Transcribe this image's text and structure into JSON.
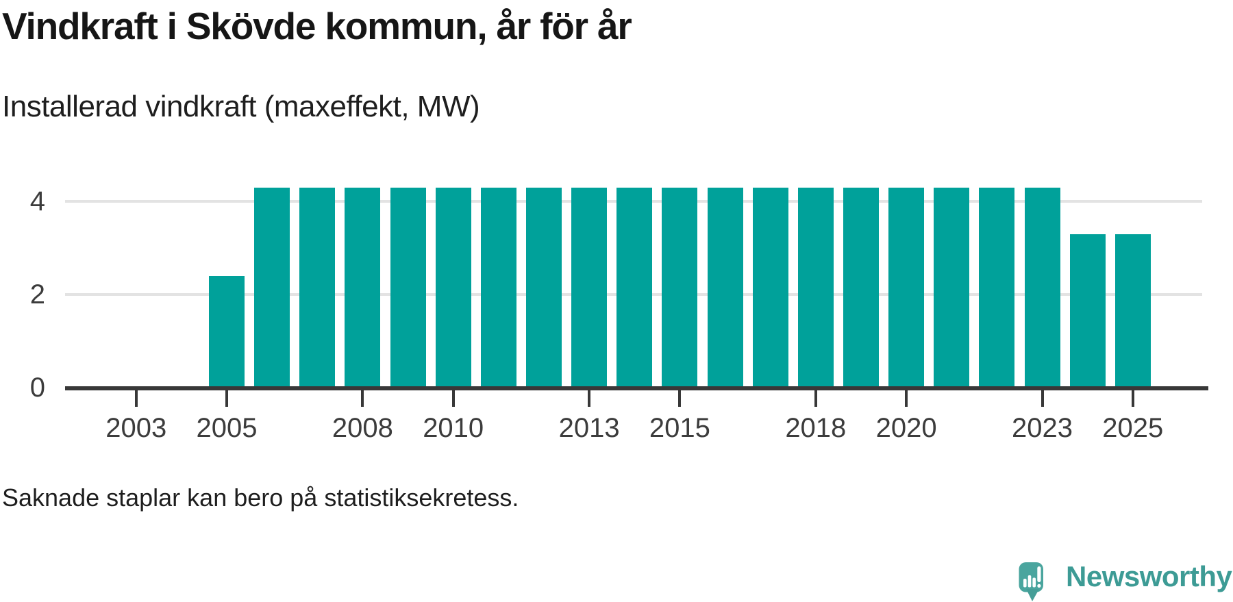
{
  "chart_data": {
    "type": "bar",
    "title": "Vindkraft i Skövde kommun, år för år",
    "subtitle": "Installerad vindkraft (maxeffekt, MW)",
    "ylabel": "Installerad vindkraft (maxeffekt, MW)",
    "unit": "MW",
    "x": [
      2002,
      2003,
      2004,
      2005,
      2006,
      2007,
      2008,
      2009,
      2010,
      2011,
      2012,
      2013,
      2014,
      2015,
      2016,
      2017,
      2018,
      2019,
      2020,
      2021,
      2022,
      2023,
      2024,
      2025
    ],
    "values": [
      null,
      null,
      null,
      2.4,
      4.3,
      4.3,
      4.3,
      4.3,
      4.3,
      4.3,
      4.3,
      4.3,
      4.3,
      4.3,
      4.3,
      4.3,
      4.3,
      4.3,
      4.3,
      4.3,
      4.3,
      4.3,
      3.3,
      3.3
    ],
    "missing_years": [
      2002,
      2003,
      2004
    ],
    "ylim": [
      0,
      5
    ],
    "yticks": [
      0,
      2,
      4
    ],
    "gridline_values": [
      2,
      4
    ],
    "xtick_years": [
      2003,
      2005,
      2008,
      2010,
      2013,
      2015,
      2018,
      2020,
      2023,
      2025
    ],
    "grid": "horizontal",
    "legend": "none",
    "note": "Saknade staplar kan bero på statistiksekretess."
  },
  "branding": {
    "name": "Newsworthy",
    "icon": "newsworthy-speech-bubble-chart-icon"
  },
  "colors": {
    "bar": "#00a19a",
    "axis": "#383838",
    "grid": "#e3e3e3",
    "tick": "#383838",
    "title_text": "#161616",
    "tick_text": "#3c3c3c",
    "brand_text": "#3d9b95",
    "brand_icon": "#4aa59e",
    "brand_icon_glyphs": "#ffffff"
  }
}
